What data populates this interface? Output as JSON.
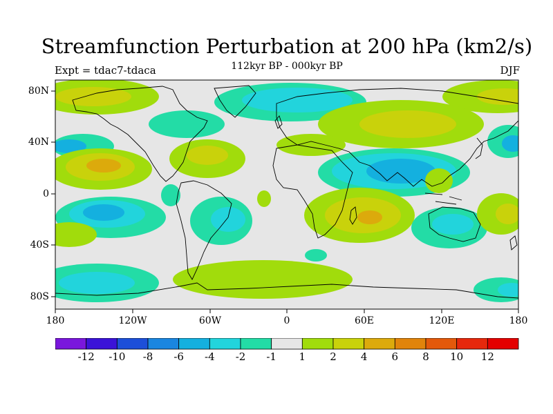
{
  "title": "Streamfunction Perturbation at 200 hPa (km2/s)",
  "subtitle": "112kyr BP - 000kyr BP",
  "left_label": "Expt = tdac7-tdaca",
  "right_label": "DJF",
  "map": {
    "type": "filled-contour-map",
    "projection": "cylindrical equidistant",
    "lat_labels": [
      "80N",
      "40N",
      "0",
      "40S",
      "80S"
    ],
    "lon_labels": [
      "180",
      "120W",
      "60W",
      "0",
      "60E",
      "120E",
      "180"
    ],
    "background_color": "#e6e6e6",
    "coast_color": "#000000"
  },
  "colorbar": {
    "colors": [
      "#7a17dc",
      "#3b13d8",
      "#1d4fd9",
      "#1a86e0",
      "#14b0df",
      "#22d4dc",
      "#23dca6",
      "#e6e6e6",
      "#a1dc0c",
      "#c9d20b",
      "#dcaa0c",
      "#e1840b",
      "#e3590b",
      "#e6280c",
      "#e40000"
    ],
    "labels": [
      "-12",
      "-10",
      "-8",
      "-6",
      "-4",
      "-2",
      "-1",
      "1",
      "2",
      "4",
      "6",
      "8",
      "10",
      "12"
    ]
  }
}
